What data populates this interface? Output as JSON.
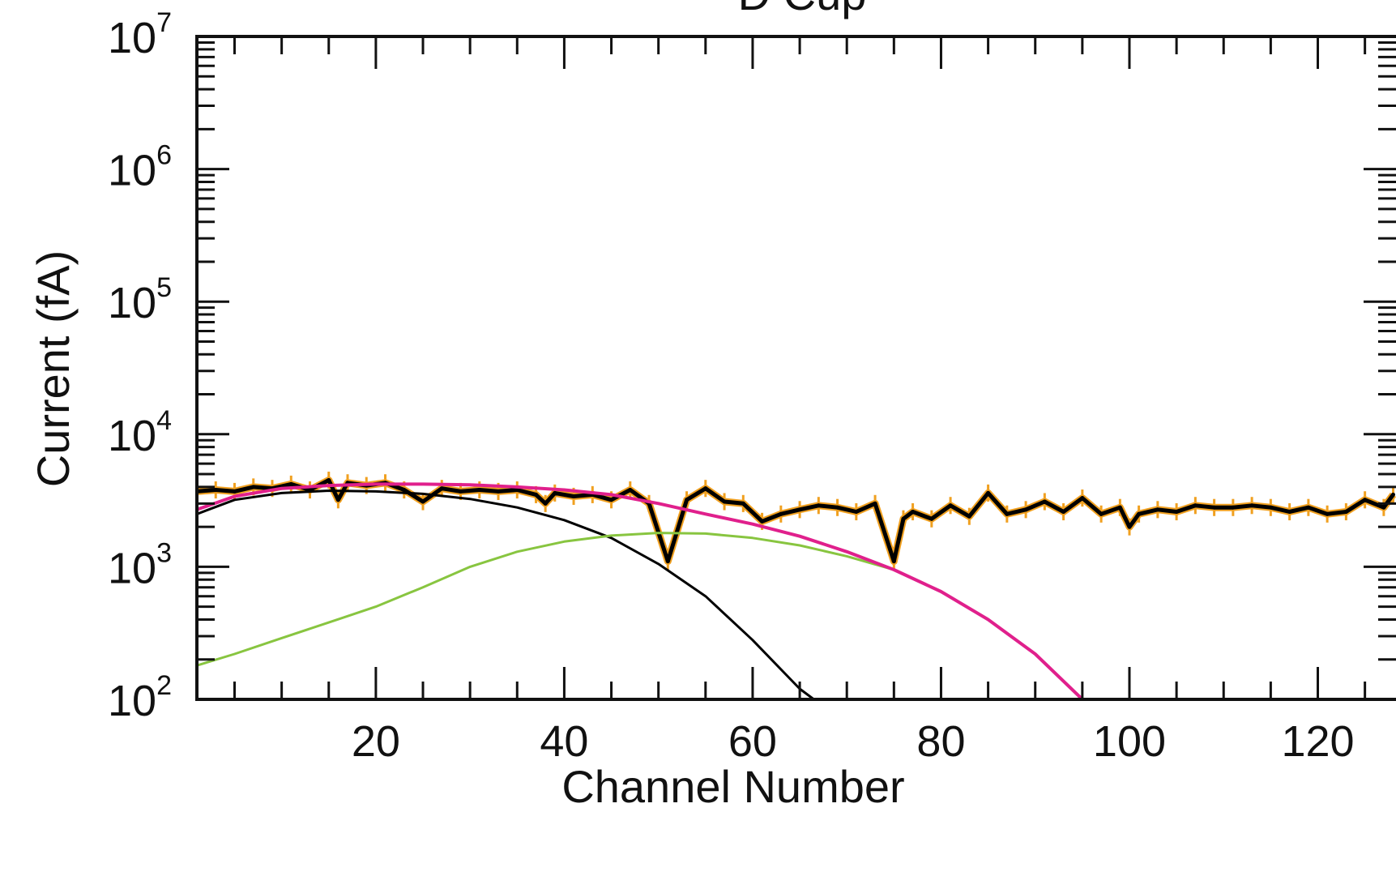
{
  "chart_data": {
    "type": "line",
    "title": "D Cup",
    "xlabel": "Channel Number",
    "ylabel": "Current (fA)",
    "xlim": [
      1,
      128
    ],
    "ylim": [
      100,
      10000000
    ],
    "yscale": "log",
    "x_ticks": [
      20,
      40,
      60,
      80,
      100,
      120
    ],
    "y_ticks": [
      {
        "value": 100,
        "base": "10",
        "exp": "2"
      },
      {
        "value": 1000,
        "base": "10",
        "exp": "3"
      },
      {
        "value": 10000,
        "base": "10",
        "exp": "4"
      },
      {
        "value": 100000,
        "base": "10",
        "exp": "5"
      },
      {
        "value": 1000000,
        "base": "10",
        "exp": "6"
      },
      {
        "value": 10000000,
        "base": "10",
        "exp": "7"
      }
    ],
    "grid": false,
    "series": [
      {
        "color": "#000000",
        "style": "measured",
        "error_color": "#f0a020",
        "x": [
          1,
          3,
          5,
          7,
          9,
          11,
          13,
          15,
          16,
          17,
          19,
          21,
          23,
          25,
          27,
          29,
          31,
          33,
          35,
          37,
          38,
          39,
          41,
          43,
          45,
          47,
          49,
          51,
          53,
          55,
          57,
          59,
          61,
          63,
          65,
          67,
          69,
          71,
          73,
          75,
          76,
          77,
          79,
          81,
          83,
          85,
          87,
          89,
          91,
          93,
          95,
          97,
          99,
          100,
          101,
          103,
          105,
          107,
          109,
          111,
          113,
          115,
          117,
          119,
          121,
          123,
          125,
          127,
          128
        ],
        "y": [
          3700,
          3800,
          3700,
          4000,
          3900,
          4200,
          3800,
          4500,
          3200,
          4300,
          4100,
          4300,
          3800,
          3100,
          3900,
          3700,
          3800,
          3700,
          3800,
          3500,
          3000,
          3600,
          3400,
          3500,
          3200,
          3800,
          3000,
          1100,
          3200,
          3900,
          3100,
          3000,
          2200,
          2500,
          2700,
          2900,
          2800,
          2600,
          3000,
          1100,
          2300,
          2600,
          2300,
          2900,
          2400,
          3600,
          2500,
          2700,
          3100,
          2600,
          3300,
          2500,
          2800,
          2000,
          2500,
          2700,
          2600,
          2900,
          2800,
          2800,
          2900,
          2800,
          2600,
          2800,
          2500,
          2600,
          3200,
          2800,
          3500
        ]
      },
      {
        "color": "#000000",
        "style": "fit",
        "x": [
          1,
          5,
          10,
          15,
          20,
          25,
          30,
          35,
          40,
          45,
          50,
          55,
          60,
          65,
          66.5
        ],
        "y": [
          2500,
          3200,
          3600,
          3750,
          3700,
          3550,
          3250,
          2800,
          2250,
          1650,
          1050,
          600,
          280,
          120,
          100
        ]
      },
      {
        "color": "#88c540",
        "style": "fit",
        "x": [
          1,
          5,
          10,
          15,
          20,
          25,
          30,
          35,
          40,
          45,
          50,
          55,
          60,
          65,
          70,
          75
        ],
        "y": [
          180,
          220,
          290,
          380,
          500,
          700,
          1000,
          1300,
          1550,
          1720,
          1800,
          1780,
          1650,
          1450,
          1200,
          950
        ]
      },
      {
        "color": "#e0208c",
        "style": "fit",
        "x": [
          1,
          5,
          10,
          15,
          20,
          25,
          30,
          35,
          40,
          45,
          50,
          55,
          60,
          65,
          70,
          75,
          80,
          85,
          90,
          95
        ],
        "y": [
          2700,
          3400,
          3900,
          4100,
          4200,
          4200,
          4150,
          4000,
          3800,
          3500,
          3000,
          2500,
          2100,
          1700,
          1300,
          950,
          650,
          400,
          220,
          100
        ]
      }
    ]
  }
}
